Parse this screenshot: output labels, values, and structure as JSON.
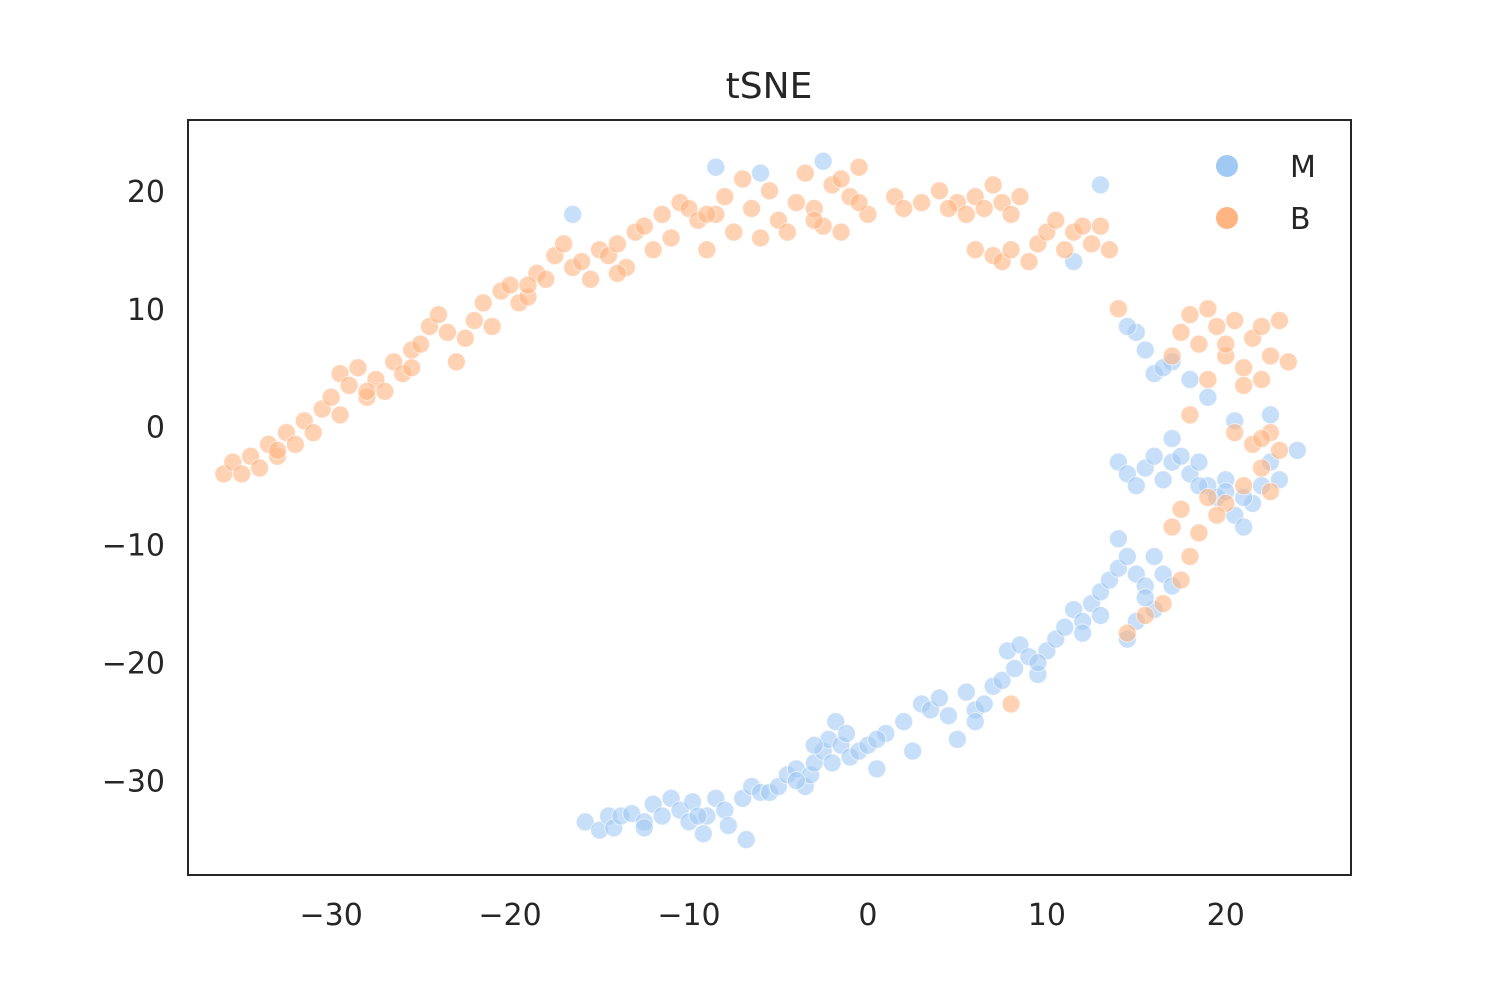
{
  "chart_data": {
    "type": "scatter",
    "title": "tSNE",
    "xlabel": "",
    "ylabel": "",
    "xlim": [
      -38,
      27
    ],
    "ylim": [
      -38,
      26
    ],
    "xticks": [
      -30,
      -20,
      -10,
      0,
      10,
      20
    ],
    "yticks": [
      20,
      10,
      0,
      -10,
      -20,
      -30
    ],
    "xtick_labels": [
      "−30",
      "−20",
      "−10",
      "0",
      "10",
      "20"
    ],
    "ytick_labels": [
      "20",
      "10",
      "0",
      "−10",
      "−20",
      "−30"
    ],
    "grid": false,
    "legend_position": "top-right",
    "series": [
      {
        "name": "M",
        "color": "#a1c9f4",
        "points": [
          [
            -15.8,
            -33.5
          ],
          [
            -15.0,
            -34.2
          ],
          [
            -14.5,
            -33.0
          ],
          [
            -14.2,
            -34.0
          ],
          [
            -13.8,
            -33.0
          ],
          [
            -13.2,
            -32.8
          ],
          [
            -12.5,
            -33.5
          ],
          [
            -12.0,
            -32.0
          ],
          [
            -11.5,
            -33.0
          ],
          [
            -11.0,
            -31.5
          ],
          [
            -10.5,
            -32.5
          ],
          [
            -10.0,
            -33.5
          ],
          [
            -9.8,
            -31.8
          ],
          [
            -9.2,
            -34.5
          ],
          [
            -9.0,
            -33.0
          ],
          [
            -8.5,
            -31.5
          ],
          [
            -8.0,
            -32.5
          ],
          [
            -7.8,
            -33.8
          ],
          [
            -7.0,
            -31.5
          ],
          [
            -6.8,
            -35.0
          ],
          [
            -6.5,
            -30.5
          ],
          [
            -6.0,
            -31.0
          ],
          [
            -5.5,
            -31.0
          ],
          [
            -5.0,
            -30.5
          ],
          [
            -4.5,
            -29.5
          ],
          [
            -4.0,
            -29.0
          ],
          [
            -3.5,
            -30.5
          ],
          [
            -3.2,
            -29.5
          ],
          [
            -3.0,
            -28.5
          ],
          [
            -2.5,
            -27.5
          ],
          [
            -2.2,
            -26.5
          ],
          [
            -2.0,
            -28.5
          ],
          [
            -1.8,
            -25.0
          ],
          [
            -1.5,
            -27.0
          ],
          [
            -1.2,
            -26.0
          ],
          [
            -1.0,
            -28.0
          ],
          [
            -0.5,
            -27.5
          ],
          [
            0.0,
            -27.0
          ],
          [
            0.5,
            -29.0
          ],
          [
            1.0,
            -26.0
          ],
          [
            2.0,
            -25.0
          ],
          [
            2.5,
            -27.5
          ],
          [
            3.0,
            -23.5
          ],
          [
            3.5,
            -24.0
          ],
          [
            4.0,
            -23.0
          ],
          [
            4.5,
            -24.5
          ],
          [
            5.0,
            -26.5
          ],
          [
            5.5,
            -22.5
          ],
          [
            6.0,
            -24.0
          ],
          [
            6.5,
            -23.5
          ],
          [
            7.0,
            -22.0
          ],
          [
            7.5,
            -21.5
          ],
          [
            7.8,
            -19.0
          ],
          [
            8.2,
            -20.5
          ],
          [
            8.5,
            -18.5
          ],
          [
            9.0,
            -19.5
          ],
          [
            9.5,
            -21.0
          ],
          [
            10.0,
            -19.0
          ],
          [
            10.5,
            -18.0
          ],
          [
            11.0,
            -17.0
          ],
          [
            11.5,
            -15.5
          ],
          [
            12.0,
            -16.5
          ],
          [
            12.5,
            -15.0
          ],
          [
            13.0,
            -14.0
          ],
          [
            13.5,
            -13.0
          ],
          [
            14.0,
            -12.0
          ],
          [
            14.5,
            -11.0
          ],
          [
            14.0,
            -9.5
          ],
          [
            15.0,
            -12.5
          ],
          [
            15.5,
            -13.5
          ],
          [
            16.0,
            -11.0
          ],
          [
            16.5,
            -12.5
          ],
          [
            17.0,
            -13.5
          ],
          [
            16.0,
            -15.5
          ],
          [
            15.0,
            -16.5
          ],
          [
            14.5,
            -18.0
          ],
          [
            15.5,
            -14.5
          ],
          [
            14.0,
            -3.0
          ],
          [
            14.5,
            -4.0
          ],
          [
            15.0,
            -5.0
          ],
          [
            15.5,
            -3.5
          ],
          [
            16.0,
            -2.5
          ],
          [
            16.5,
            -4.5
          ],
          [
            17.0,
            -3.0
          ],
          [
            17.5,
            -2.5
          ],
          [
            18.0,
            -4.0
          ],
          [
            17.0,
            -1.0
          ],
          [
            18.5,
            -3.0
          ],
          [
            19.0,
            -5.0
          ],
          [
            19.5,
            -6.0
          ],
          [
            20.0,
            -4.5
          ],
          [
            20.5,
            -7.5
          ],
          [
            21.0,
            -8.5
          ],
          [
            21.5,
            -6.5
          ],
          [
            22.0,
            -5.0
          ],
          [
            22.5,
            -3.0
          ],
          [
            23.0,
            -4.5
          ],
          [
            22.5,
            1.0
          ],
          [
            24.0,
            -2.0
          ],
          [
            20.5,
            0.5
          ],
          [
            19.0,
            2.5
          ],
          [
            18.0,
            4.0
          ],
          [
            17.0,
            5.5
          ],
          [
            16.0,
            4.5
          ],
          [
            15.5,
            6.5
          ],
          [
            15.0,
            8.0
          ],
          [
            14.5,
            8.5
          ],
          [
            16.5,
            5.0
          ],
          [
            13.0,
            20.5
          ],
          [
            11.5,
            14.0
          ],
          [
            -2.5,
            22.5
          ],
          [
            -8.5,
            22.0
          ],
          [
            -6.0,
            21.5
          ],
          [
            -16.5,
            18.0
          ],
          [
            -9.5,
            -33.0
          ],
          [
            -12.5,
            -34.0
          ],
          [
            -4.0,
            -30.0
          ],
          [
            0.5,
            -26.5
          ],
          [
            6.0,
            -25.0
          ],
          [
            9.5,
            -20.0
          ],
          [
            12.0,
            -17.5
          ],
          [
            13.0,
            -16.0
          ],
          [
            20.0,
            -5.5
          ],
          [
            21.0,
            -6.0
          ],
          [
            18.5,
            -5.0
          ],
          [
            -3.0,
            -27.0
          ]
        ]
      },
      {
        "name": "B",
        "color": "#ffb482",
        "points": [
          [
            -36.0,
            -4.0
          ],
          [
            -35.5,
            -3.0
          ],
          [
            -35.0,
            -4.0
          ],
          [
            -34.5,
            -2.5
          ],
          [
            -34.0,
            -3.5
          ],
          [
            -33.5,
            -1.5
          ],
          [
            -33.0,
            -2.5
          ],
          [
            -32.5,
            -0.5
          ],
          [
            -32.0,
            -1.5
          ],
          [
            -31.5,
            0.5
          ],
          [
            -31.0,
            -0.5
          ],
          [
            -30.5,
            1.5
          ],
          [
            -30.0,
            2.5
          ],
          [
            -29.5,
            1.0
          ],
          [
            -29.5,
            4.5
          ],
          [
            -29.0,
            3.5
          ],
          [
            -28.5,
            5.0
          ],
          [
            -28.0,
            2.5
          ],
          [
            -27.5,
            4.0
          ],
          [
            -27.0,
            3.0
          ],
          [
            -26.5,
            5.5
          ],
          [
            -26.0,
            4.5
          ],
          [
            -25.5,
            6.5
          ],
          [
            -25.0,
            7.0
          ],
          [
            -24.5,
            8.5
          ],
          [
            -24.0,
            9.5
          ],
          [
            -23.5,
            8.0
          ],
          [
            -23.0,
            5.5
          ],
          [
            -22.5,
            7.5
          ],
          [
            -22.0,
            9.0
          ],
          [
            -21.5,
            10.5
          ],
          [
            -21.0,
            8.5
          ],
          [
            -20.5,
            11.5
          ],
          [
            -20.0,
            12.0
          ],
          [
            -19.5,
            10.5
          ],
          [
            -19.0,
            11.0
          ],
          [
            -18.5,
            13.0
          ],
          [
            -18.0,
            12.5
          ],
          [
            -17.5,
            14.5
          ],
          [
            -17.0,
            15.5
          ],
          [
            -16.5,
            13.5
          ],
          [
            -16.0,
            14.0
          ],
          [
            -15.5,
            12.5
          ],
          [
            -15.0,
            15.0
          ],
          [
            -14.5,
            14.5
          ],
          [
            -14.0,
            15.5
          ],
          [
            -13.5,
            13.5
          ],
          [
            -13.0,
            16.5
          ],
          [
            -12.5,
            17.0
          ],
          [
            -12.0,
            15.0
          ],
          [
            -11.5,
            18.0
          ],
          [
            -11.0,
            16.0
          ],
          [
            -10.5,
            19.0
          ],
          [
            -10.0,
            18.5
          ],
          [
            -9.5,
            17.5
          ],
          [
            -9.0,
            15.0
          ],
          [
            -8.5,
            18.0
          ],
          [
            -8.0,
            19.5
          ],
          [
            -7.5,
            16.5
          ],
          [
            -7.0,
            21.0
          ],
          [
            -6.5,
            18.5
          ],
          [
            -6.0,
            16.0
          ],
          [
            -5.5,
            20.0
          ],
          [
            -5.0,
            17.5
          ],
          [
            -4.5,
            16.5
          ],
          [
            -4.0,
            19.0
          ],
          [
            -3.5,
            21.5
          ],
          [
            -3.0,
            18.5
          ],
          [
            -2.5,
            17.0
          ],
          [
            -2.0,
            20.5
          ],
          [
            -1.5,
            16.5
          ],
          [
            -1.0,
            19.5
          ],
          [
            -0.5,
            22.0
          ],
          [
            0.0,
            18.0
          ],
          [
            1.5,
            19.5
          ],
          [
            2.0,
            18.5
          ],
          [
            3.0,
            19.0
          ],
          [
            4.0,
            20.0
          ],
          [
            5.0,
            19.0
          ],
          [
            5.5,
            18.0
          ],
          [
            6.0,
            19.5
          ],
          [
            6.5,
            18.5
          ],
          [
            7.0,
            20.5
          ],
          [
            7.5,
            19.0
          ],
          [
            8.0,
            18.0
          ],
          [
            8.5,
            19.5
          ],
          [
            6.0,
            15.0
          ],
          [
            7.0,
            14.5
          ],
          [
            7.5,
            14.0
          ],
          [
            8.0,
            15.0
          ],
          [
            9.0,
            14.0
          ],
          [
            9.5,
            15.5
          ],
          [
            10.0,
            16.5
          ],
          [
            10.5,
            17.5
          ],
          [
            11.0,
            15.0
          ],
          [
            11.5,
            16.5
          ],
          [
            12.0,
            17.0
          ],
          [
            12.5,
            15.5
          ],
          [
            13.0,
            17.0
          ],
          [
            13.5,
            15.0
          ],
          [
            14.0,
            10.0
          ],
          [
            17.0,
            6.0
          ],
          [
            17.5,
            8.0
          ],
          [
            18.0,
            9.5
          ],
          [
            18.5,
            7.0
          ],
          [
            19.0,
            10.0
          ],
          [
            19.5,
            8.5
          ],
          [
            20.0,
            6.0
          ],
          [
            20.5,
            9.0
          ],
          [
            21.0,
            5.0
          ],
          [
            21.5,
            7.5
          ],
          [
            22.0,
            8.5
          ],
          [
            22.5,
            6.0
          ],
          [
            23.0,
            9.0
          ],
          [
            23.5,
            5.5
          ],
          [
            22.0,
            4.0
          ],
          [
            21.0,
            3.5
          ],
          [
            19.0,
            4.0
          ],
          [
            18.0,
            1.0
          ],
          [
            20.5,
            -0.5
          ],
          [
            21.5,
            -1.5
          ],
          [
            22.5,
            -0.5
          ],
          [
            23.0,
            -2.0
          ],
          [
            22.0,
            -3.5
          ],
          [
            22.5,
            -5.5
          ],
          [
            21.0,
            -5.0
          ],
          [
            20.0,
            -6.5
          ],
          [
            19.5,
            -7.5
          ],
          [
            18.5,
            -9.0
          ],
          [
            17.5,
            -7.0
          ],
          [
            17.0,
            -8.5
          ],
          [
            18.0,
            -11.0
          ],
          [
            17.5,
            -13.0
          ],
          [
            16.5,
            -15.0
          ],
          [
            15.5,
            -16.0
          ],
          [
            14.5,
            -17.5
          ],
          [
            8.0,
            -23.5
          ],
          [
            -28.0,
            3.0
          ],
          [
            -33.0,
            -2.0
          ],
          [
            -25.5,
            5.0
          ],
          [
            -19.0,
            12.0
          ],
          [
            -14.0,
            13.0
          ],
          [
            -9.0,
            18.0
          ],
          [
            -3.0,
            17.5
          ],
          [
            -1.5,
            21.0
          ],
          [
            -0.5,
            19.0
          ],
          [
            4.5,
            18.5
          ],
          [
            20.0,
            7.0
          ],
          [
            19.0,
            -6.0
          ],
          [
            22.0,
            -1.0
          ]
        ]
      }
    ]
  }
}
